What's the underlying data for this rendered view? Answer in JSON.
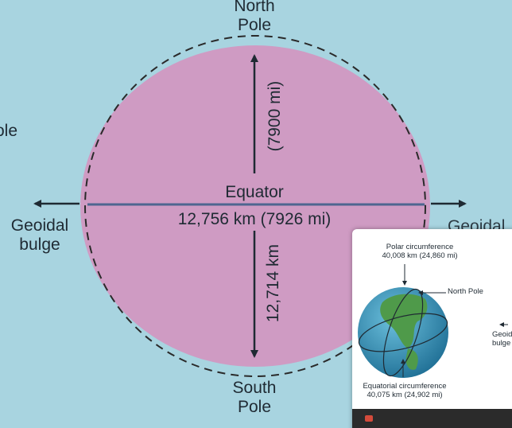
{
  "diagram": {
    "labels": {
      "north_pole": "North\nPole",
      "south_pole": "South\nPole",
      "equator": "Equator",
      "equatorial_diameter": "12,756 km (7926 mi)",
      "polar_diameter_km": "12,714 km",
      "polar_diameter_mi": "(7900 mi)",
      "geoidal_bulge_left": "Geoidal\nbulge",
      "partial_left": "ole",
      "partial_right": "Geoidal"
    },
    "colors": {
      "background": "#a8d4e0",
      "ellipse_fill": "#cf9bc3",
      "dashed_outline": "#2a2a2a",
      "equator_line": "#4e6690",
      "arrows": "#1f2a33"
    }
  },
  "inset": {
    "polar_circumference": "Polar circumference\n40,008 km (24,860 mi)",
    "north_pole": "North Pole",
    "equatorial_circumference": "Equatorial circumference\n40,075 km (24,902 mi)",
    "geoidal_bulge": "Geoid\nbulge",
    "colors": {
      "ocean": "#2e8fb5",
      "land": "#4f9a4a",
      "bottom_bar": "#2b2b2b"
    }
  }
}
